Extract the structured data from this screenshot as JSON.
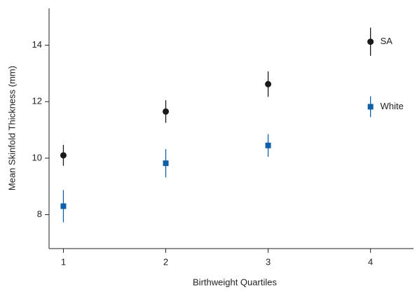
{
  "chart_data": {
    "type": "scatter",
    "xlabel": "Birthweight Quartiles",
    "ylabel": "Mean Skinfold Thickness (mm)",
    "x": [
      1,
      2,
      3,
      4
    ],
    "series": [
      {
        "name": "SA",
        "color": "#1a1a1a",
        "marker": "circle",
        "values": [
          10.1,
          11.65,
          12.62,
          14.12
        ],
        "errors": [
          0.37,
          0.4,
          0.45,
          0.5
        ]
      },
      {
        "name": "White",
        "color": "#1060a8",
        "marker": "square",
        "values": [
          8.3,
          9.82,
          10.45,
          11.82
        ],
        "errors": [
          0.57,
          0.5,
          0.4,
          0.37
        ]
      }
    ],
    "xlim": [
      0.86,
      4.42
    ],
    "xticks": [
      1,
      2,
      3,
      4
    ],
    "ylim": [
      6.8,
      15.3
    ],
    "yticks": [
      8,
      10,
      12,
      14
    ]
  }
}
